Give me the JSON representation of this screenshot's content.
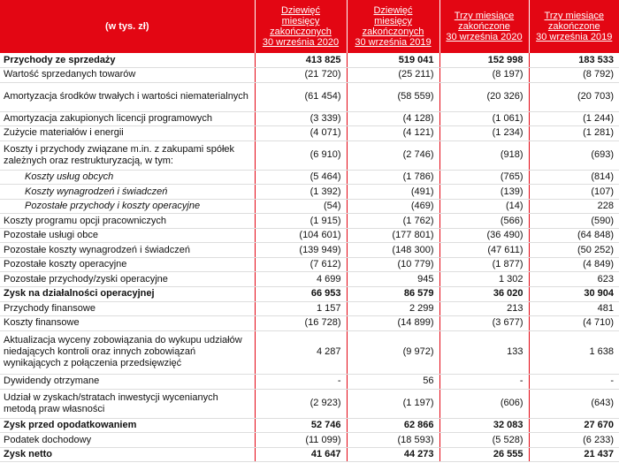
{
  "header": {
    "unit": "(w tys. zł)",
    "columns": [
      [
        "Dziewięć",
        "miesięcy",
        "zakończonych",
        "30 września 2020"
      ],
      [
        "Dziewięć",
        "miesięcy",
        "zakończonych",
        "30 września 2019"
      ],
      [
        "Trzy miesiące",
        "zakończone",
        "30 września 2020"
      ],
      [
        "Trzy miesiące",
        "zakończone",
        "30 września 2019"
      ]
    ]
  },
  "table": {
    "rows": [
      [
        "Przychody ze sprzedaży",
        "413 825",
        "519 041",
        "152 998",
        "183 533"
      ],
      [
        "Wartość sprzedanych towarów",
        "(21 720)",
        "(25 211)",
        "(8 197)",
        "(8 792)"
      ],
      [
        "Amortyzacja środków trwałych i wartości niematerialnych",
        "(61 454)",
        "(58 559)",
        "(20 326)",
        "(20 703)"
      ],
      [
        "Amortyzacja zakupionych licencji programowych",
        "(3 339)",
        "(4 128)",
        "(1 061)",
        "(1 244)"
      ],
      [
        "Zużycie materiałów i energii",
        "(4 071)",
        "(4 121)",
        "(1 234)",
        "(1 281)"
      ],
      [
        "Koszty i przychody związane m.in. z zakupami spółek zależnych oraz restrukturyzacją, w tym:",
        "(6 910)",
        "(2 746)",
        "(918)",
        "(693)"
      ],
      [
        "Koszty usług obcych",
        "(5 464)",
        "(1 786)",
        "(765)",
        "(814)"
      ],
      [
        "Koszty wynagrodzeń i świadczeń",
        "(1 392)",
        "(491)",
        "(139)",
        "(107)"
      ],
      [
        "Pozostałe przychody i koszty operacyjne",
        "(54)",
        "(469)",
        "(14)",
        "228"
      ],
      [
        "Koszty programu opcji pracowniczych",
        "(1 915)",
        "(1 762)",
        "(566)",
        "(590)"
      ],
      [
        "Pozostałe usługi obce",
        "(104 601)",
        "(177 801)",
        "(36 490)",
        "(64 848)"
      ],
      [
        "Pozostałe koszty wynagrodzeń i świadczeń",
        "(139 949)",
        "(148 300)",
        "(47 611)",
        "(50 252)"
      ],
      [
        "Pozostałe koszty operacyjne",
        "(7 612)",
        "(10 779)",
        "(1 877)",
        "(4 849)"
      ],
      [
        "Pozostałe przychody/zyski operacyjne",
        "4 699",
        "945",
        "1 302",
        "623"
      ],
      [
        "Zysk na działalności operacyjnej",
        "66 953",
        "86 579",
        "36 020",
        "30 904"
      ],
      [
        "Przychody finansowe",
        "1 157",
        "2 299",
        "213",
        "481"
      ],
      [
        "Koszty finansowe",
        "(16 728)",
        "(14 899)",
        "(3 677)",
        "(4 710)"
      ],
      [
        " Aktualizacja wyceny zobowiązania do wykupu udziałów niedających kontroli oraz innych zobowiązań wynikających z połączenia przedsięwzięć",
        "4 287",
        "(9 972)",
        "133",
        "1 638"
      ],
      [
        "Dywidendy otrzymane",
        "-",
        "56",
        "-",
        "-"
      ],
      [
        "Udział w zyskach/stratach inwestycji wycenianych metodą praw własności",
        "(2 923)",
        "(1 197)",
        "(606)",
        "(643)"
      ],
      [
        "Zysk przed opodatkowaniem",
        "52 746",
        "62 866",
        "32 083",
        "27 670"
      ],
      [
        "Podatek dochodowy",
        "(11 099)",
        "(18 593)",
        "(5 528)",
        "(6 233)"
      ],
      [
        "Zysk netto",
        "41 647",
        "44 273",
        "26 555",
        "21 437"
      ]
    ]
  }
}
